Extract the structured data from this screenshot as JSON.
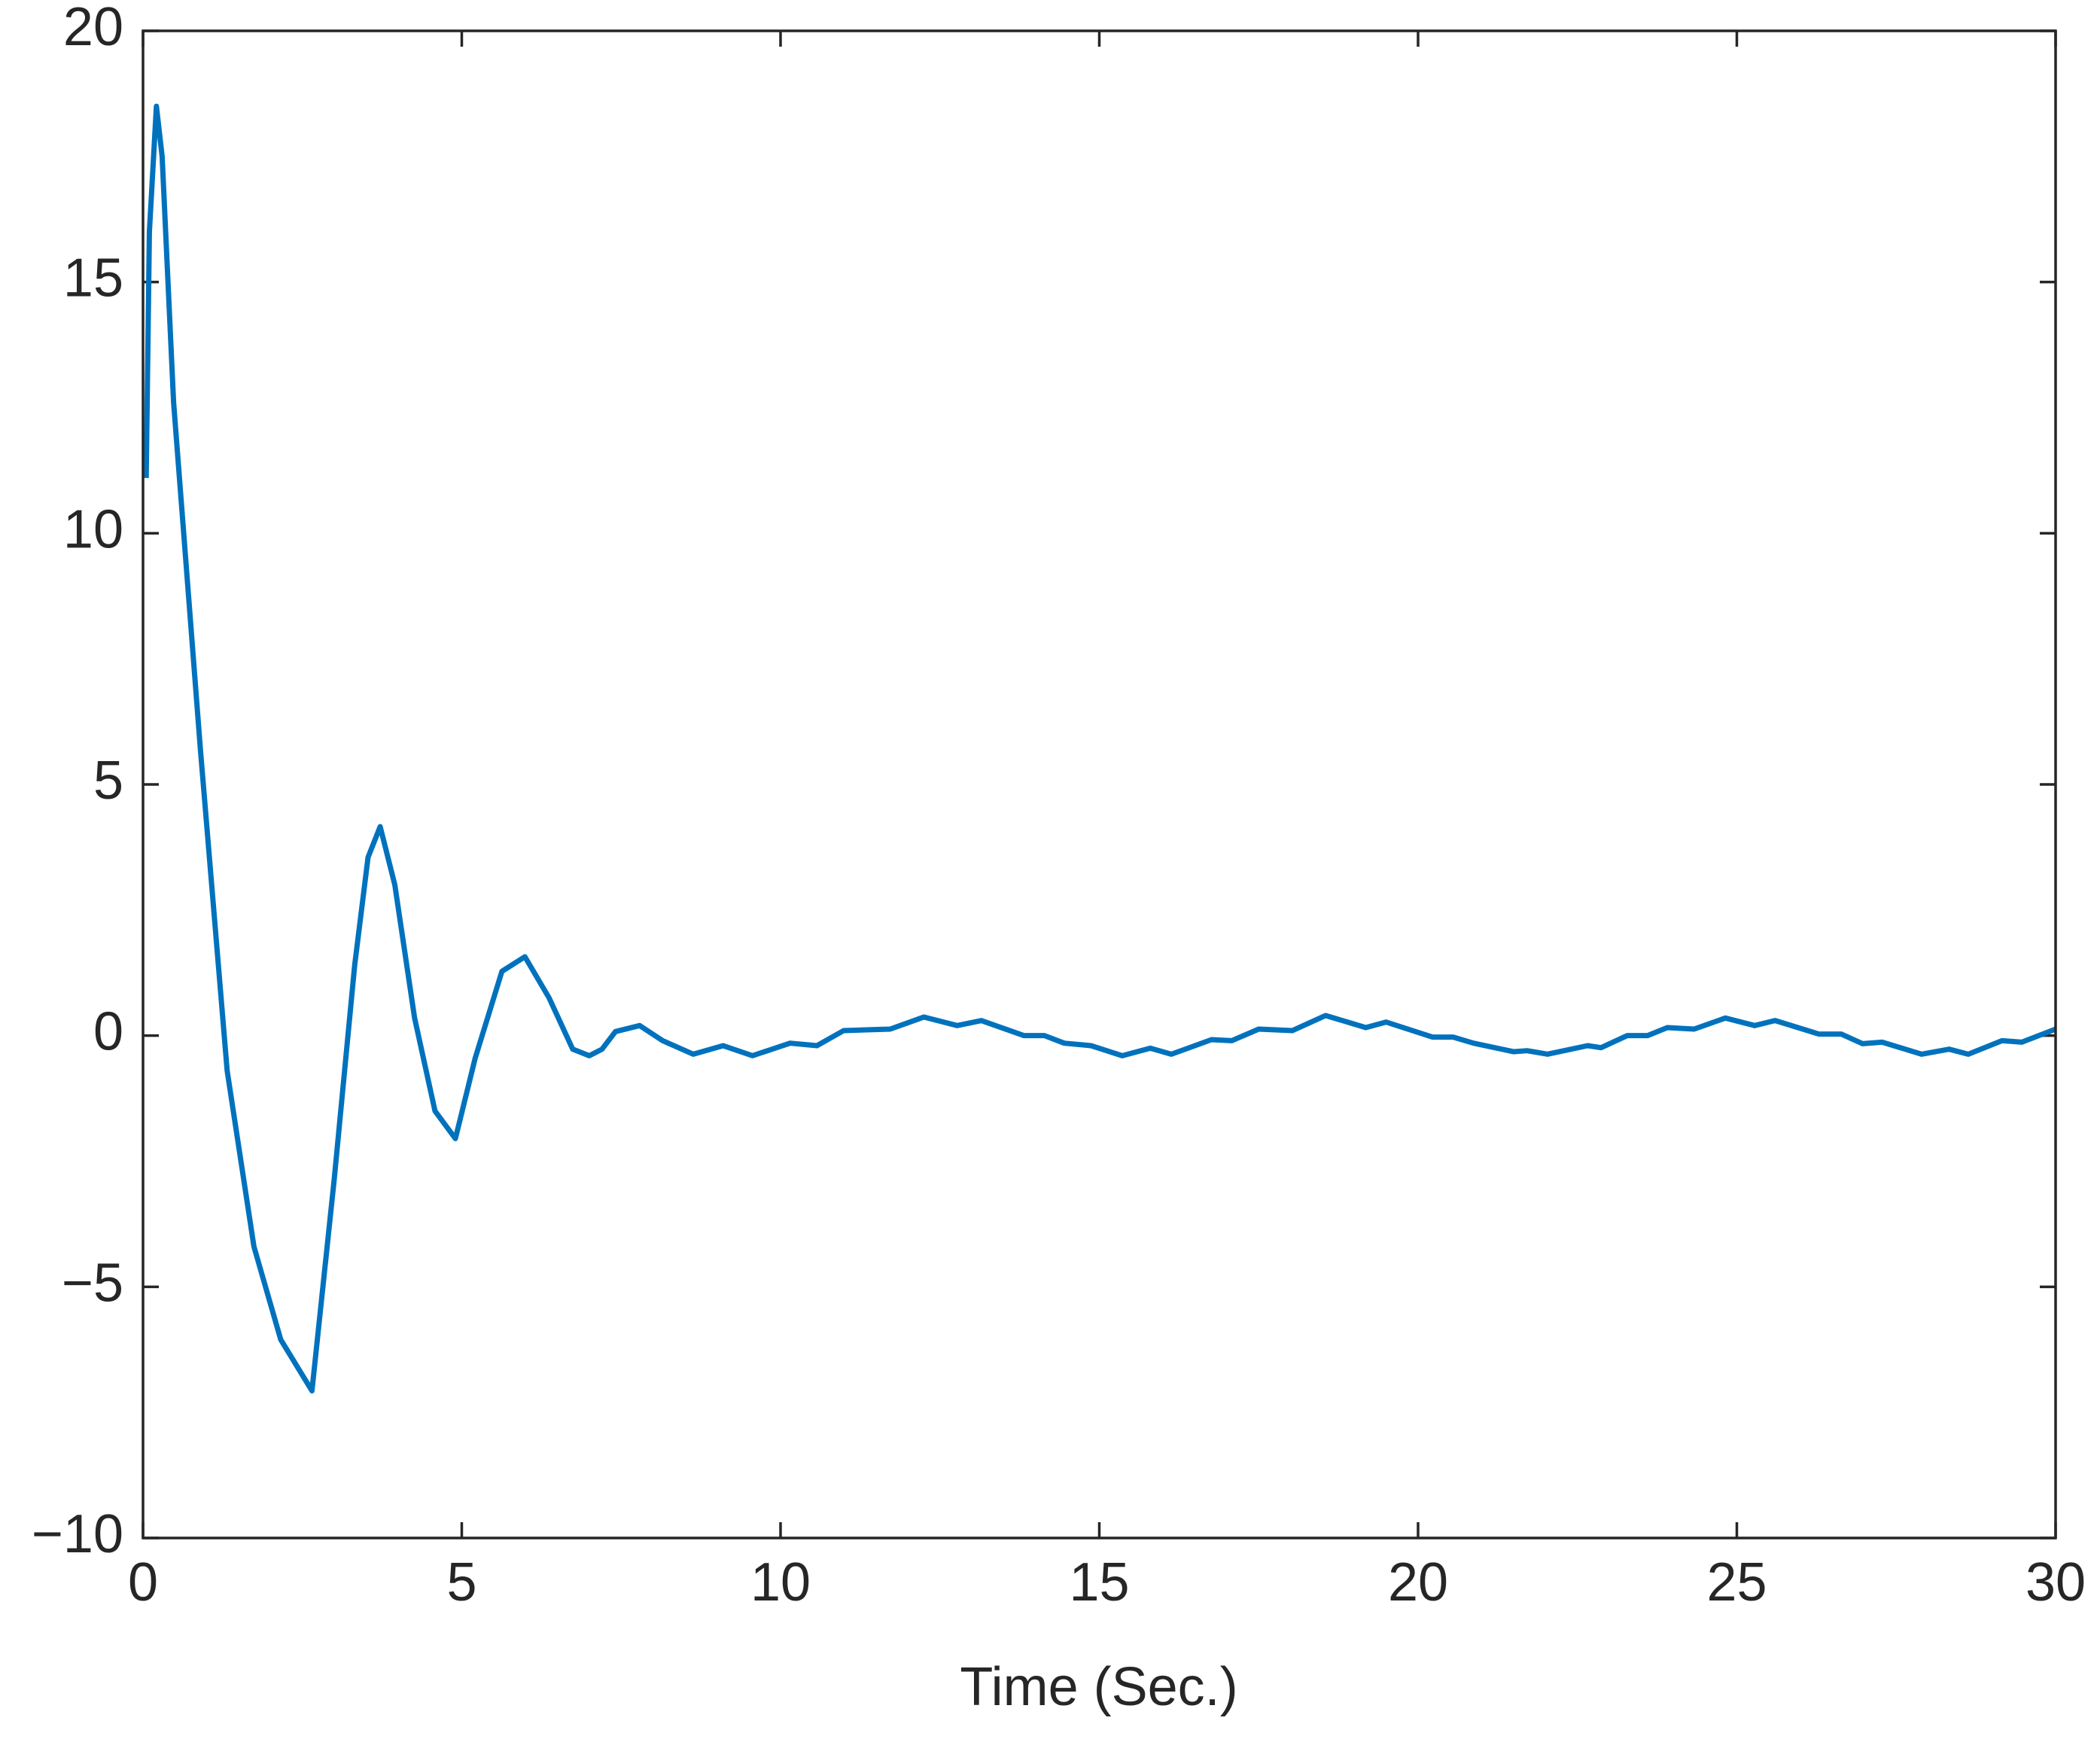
{
  "chart_data": {
    "type": "line",
    "xlabel": "Time (Sec.)",
    "x": [
      0.05,
      0.1,
      0.21,
      0.3,
      0.48,
      0.9,
      1.32,
      1.74,
      2.16,
      2.65,
      3.0,
      3.32,
      3.53,
      3.72,
      3.95,
      4.26,
      4.58,
      4.9,
      5.21,
      5.63,
      5.99,
      6.37,
      6.74,
      7.0,
      7.2,
      7.41,
      7.79,
      8.15,
      8.63,
      9.1,
      9.56,
      10.15,
      10.57,
      10.99,
      11.72,
      12.25,
      12.77,
      13.15,
      13.82,
      14.14,
      14.45,
      14.87,
      15.36,
      15.8,
      16.13,
      16.76,
      17.08,
      17.5,
      18.03,
      18.55,
      19.18,
      19.5,
      20.23,
      20.55,
      20.87,
      21.5,
      21.71,
      22.03,
      22.66,
      22.87,
      23.28,
      23.6,
      23.91,
      24.33,
      24.82,
      25.28,
      25.6,
      26.29,
      26.64,
      26.97,
      27.28,
      27.9,
      28.33,
      28.63,
      29.16,
      29.47,
      30
    ],
    "series": [
      {
        "color": "#0072bd",
        "values": [
          11.1,
          16,
          18.5,
          17.5,
          12.6,
          5.7,
          -0.7,
          -4.2,
          -6.05,
          -7.07,
          -2.85,
          1.4,
          3.55,
          4.16,
          3.0,
          0.35,
          -1.5,
          -2.05,
          -0.45,
          1.28,
          1.57,
          0.75,
          -0.27,
          -0.4,
          -0.27,
          0.08,
          0.2,
          -0.1,
          -0.37,
          -0.2,
          -0.4,
          -0.15,
          -0.2,
          0.1,
          0.13,
          0.37,
          0.2,
          0.3,
          0,
          0,
          -0.15,
          -0.2,
          -0.4,
          -0.25,
          -0.37,
          -0.08,
          -0.1,
          0.13,
          0.1,
          0.4,
          0.16,
          0.27,
          -0.03,
          -0.03,
          -0.15,
          -0.32,
          -0.3,
          -0.37,
          -0.2,
          -0.24,
          0,
          0,
          0.16,
          0.13,
          0.35,
          0.2,
          0.3,
          0.03,
          0.03,
          -0.16,
          -0.13,
          -0.37,
          -0.27,
          -0.37,
          -0.1,
          -0.13,
          0.13
        ]
      }
    ],
    "xlim": [
      0,
      30
    ],
    "xticks": [
      0,
      5,
      10,
      15,
      20,
      25,
      30
    ],
    "ylim": [
      -10,
      20
    ],
    "yticks": [
      {
        "value": -10,
        "label": "−10"
      },
      {
        "value": -5,
        "label": "−5"
      },
      0,
      5,
      10,
      15,
      20
    ],
    "grid": false,
    "box": true
  }
}
